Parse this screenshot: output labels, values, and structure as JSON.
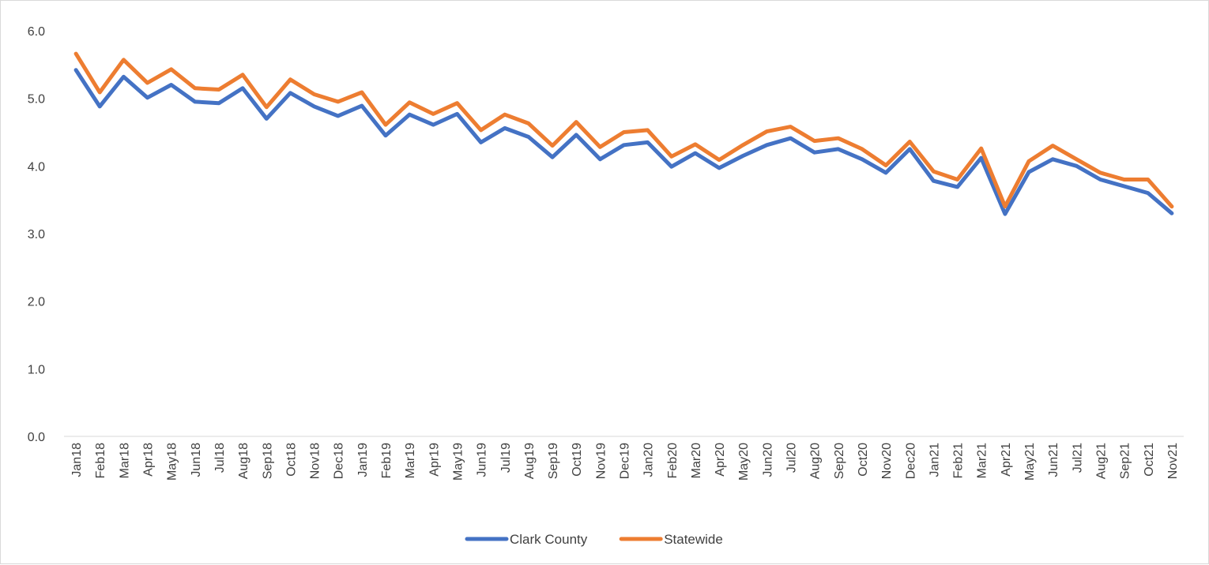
{
  "chart_data": {
    "type": "line",
    "title": "",
    "xlabel": "",
    "ylabel": "",
    "ylim": [
      0,
      6
    ],
    "yticks": [
      "0.0",
      "1.0",
      "2.0",
      "3.0",
      "4.0",
      "5.0",
      "6.0"
    ],
    "grid": false,
    "legend": "bottom",
    "x": [
      "Jan18",
      "Feb18",
      "Mar18",
      "Apr18",
      "May18",
      "Jun18",
      "Jul18",
      "Aug18",
      "Sep18",
      "Oct18",
      "Nov18",
      "Dec18",
      "Jan19",
      "Feb19",
      "Mar19",
      "Apr19",
      "May19",
      "Jun19",
      "Jul19",
      "Aug19",
      "Sep19",
      "Oct19",
      "Nov19",
      "Dec19",
      "Jan20",
      "Feb20",
      "Mar20",
      "Apr20",
      "May20",
      "Jun20",
      "Jul20",
      "Aug20",
      "Sep20",
      "Oct20",
      "Nov20",
      "Dec20",
      "Jan21",
      "Feb21",
      "Mar21",
      "Apr21",
      "May21",
      "Jun21",
      "Jul21",
      "Aug21",
      "Sep21",
      "Oct21",
      "Nov21"
    ],
    "series": [
      {
        "name": "Clark County",
        "color": "#4472c4",
        "values": [
          5.42,
          4.88,
          5.32,
          5.01,
          5.2,
          4.95,
          4.93,
          5.15,
          4.7,
          5.08,
          4.88,
          4.74,
          4.89,
          4.45,
          4.76,
          4.61,
          4.77,
          4.35,
          4.56,
          4.43,
          4.13,
          4.46,
          4.1,
          4.31,
          4.35,
          3.99,
          4.19,
          3.97,
          4.15,
          4.31,
          4.41,
          4.2,
          4.25,
          4.1,
          3.9,
          4.25,
          3.78,
          3.69,
          4.12,
          3.29,
          3.91,
          4.1,
          4.0,
          3.8,
          3.7,
          3.6,
          3.3
        ]
      },
      {
        "name": "Statewide",
        "color": "#ed7d31",
        "values": [
          5.66,
          5.09,
          5.57,
          5.23,
          5.43,
          5.15,
          5.13,
          5.35,
          4.87,
          5.28,
          5.06,
          4.95,
          5.09,
          4.61,
          4.94,
          4.77,
          4.93,
          4.53,
          4.76,
          4.63,
          4.3,
          4.65,
          4.28,
          4.5,
          4.53,
          4.14,
          4.32,
          4.09,
          4.31,
          4.51,
          4.58,
          4.37,
          4.41,
          4.25,
          4.01,
          4.36,
          3.92,
          3.8,
          4.26,
          3.4,
          4.07,
          4.3,
          4.1,
          3.9,
          3.8,
          3.8,
          3.4
        ]
      }
    ]
  }
}
